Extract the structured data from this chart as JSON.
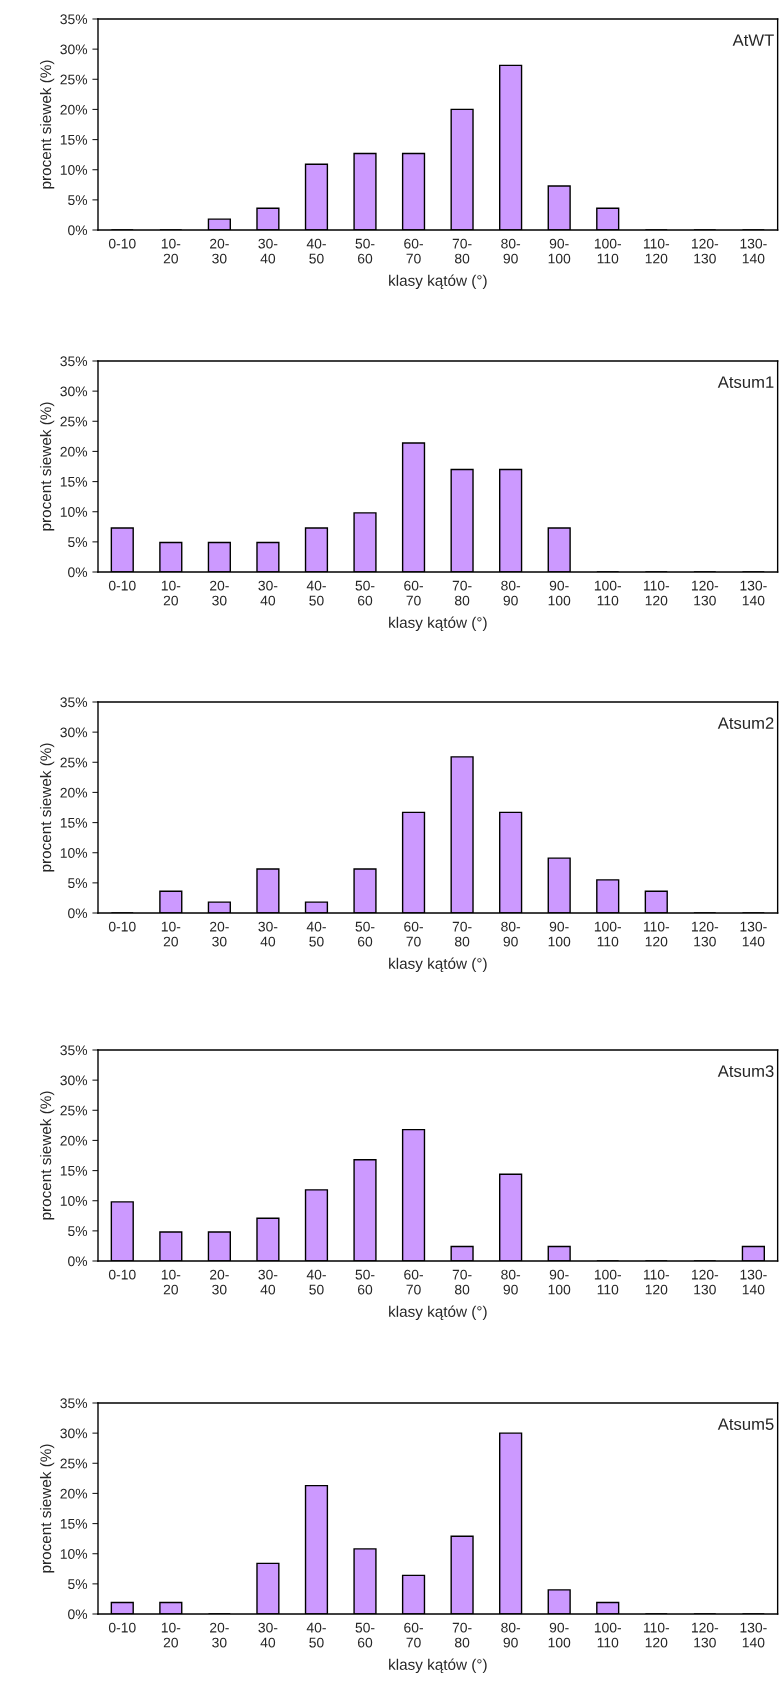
{
  "chart_data": [
    {
      "type": "bar",
      "title": "AtWT",
      "xlabel": "klasy kątów (°)",
      "ylabel": "procent siewek (%)",
      "categories": [
        "0-10",
        "10-\n20",
        "20-\n30",
        "30-\n40",
        "40-\n50",
        "50-\n60",
        "60-\n70",
        "70-\n80",
        "80-\n90",
        "90-\n100",
        "100-\n110",
        "110-\n120",
        "120-\n130",
        "130-\n140"
      ],
      "color": "#cc99ff",
      "values": [
        0,
        0,
        1.8,
        3.6,
        10.9,
        12.7,
        12.7,
        20,
        27.3,
        7.3,
        3.6,
        0,
        0,
        0
      ],
      "ylim": [
        0,
        35
      ],
      "yticks": [
        {
          "value": 0,
          "label": "0%"
        },
        {
          "value": 5,
          "label": "5%"
        },
        {
          "value": 10,
          "label": "10%"
        },
        {
          "value": 15,
          "label": "15%"
        },
        {
          "value": 20,
          "label": "20%"
        },
        {
          "value": 25,
          "label": "25%"
        },
        {
          "value": 30,
          "label": "30%"
        },
        {
          "value": 35,
          "label": "35%"
        }
      ],
      "grid": false,
      "legend": false
    },
    {
      "type": "bar",
      "title": "Atsum1",
      "xlabel": "klasy kątów (°)",
      "ylabel": "procent siewek (%)",
      "categories": [
        "0-10",
        "10-\n20",
        "20-\n30",
        "30-\n40",
        "40-\n50",
        "50-\n60",
        "60-\n70",
        "70-\n80",
        "80-\n90",
        "90-\n100",
        "100-\n110",
        "110-\n120",
        "120-\n130",
        "130-\n140"
      ],
      "color": "#cc99ff",
      "values": [
        7.3,
        4.9,
        4.9,
        4.9,
        7.3,
        9.8,
        21.4,
        17,
        17,
        7.3,
        0,
        0,
        0,
        0
      ],
      "ylim": [
        0,
        35
      ],
      "yticks": [
        {
          "value": 0,
          "label": "0%"
        },
        {
          "value": 5,
          "label": "5%"
        },
        {
          "value": 10,
          "label": "10%"
        },
        {
          "value": 15,
          "label": "15%"
        },
        {
          "value": 20,
          "label": "20%"
        },
        {
          "value": 25,
          "label": "25%"
        },
        {
          "value": 30,
          "label": "30%"
        },
        {
          "value": 35,
          "label": "35%"
        }
      ],
      "grid": false,
      "legend": false
    },
    {
      "type": "bar",
      "title": "Atsum2",
      "xlabel": "klasy kątów (°)",
      "ylabel": "procent siewek (%)",
      "categories": [
        "0-10",
        "10-\n20",
        "20-\n30",
        "30-\n40",
        "40-\n50",
        "50-\n60",
        "60-\n70",
        "70-\n80",
        "80-\n90",
        "90-\n100",
        "100-\n110",
        "110-\n120",
        "120-\n130",
        "130-\n140"
      ],
      "color": "#cc99ff",
      "values": [
        0,
        3.6,
        1.8,
        7.3,
        1.8,
        7.3,
        16.7,
        25.9,
        16.7,
        9.1,
        5.5,
        3.6,
        0,
        0
      ],
      "ylim": [
        0,
        35
      ],
      "yticks": [
        {
          "value": 0,
          "label": "0%"
        },
        {
          "value": 5,
          "label": "5%"
        },
        {
          "value": 10,
          "label": "10%"
        },
        {
          "value": 15,
          "label": "15%"
        },
        {
          "value": 20,
          "label": "20%"
        },
        {
          "value": 25,
          "label": "25%"
        },
        {
          "value": 30,
          "label": "30%"
        },
        {
          "value": 35,
          "label": "35%"
        }
      ],
      "grid": false,
      "legend": false
    },
    {
      "type": "bar",
      "title": "Atsum3",
      "xlabel": "klasy kątów (°)",
      "ylabel": "procent siewek (%)",
      "categories": [
        "0-10",
        "10-\n20",
        "20-\n30",
        "30-\n40",
        "40-\n50",
        "50-\n60",
        "60-\n70",
        "70-\n80",
        "80-\n90",
        "90-\n100",
        "100-\n110",
        "110-\n120",
        "120-\n130",
        "130-\n140"
      ],
      "color": "#cc99ff",
      "values": [
        9.8,
        4.8,
        4.8,
        7.1,
        11.8,
        16.8,
        21.8,
        2.4,
        14.4,
        2.4,
        0,
        0,
        0,
        2.4
      ],
      "ylim": [
        0,
        35
      ],
      "yticks": [
        {
          "value": 0,
          "label": "0%"
        },
        {
          "value": 5,
          "label": "5%"
        },
        {
          "value": 10,
          "label": "10%"
        },
        {
          "value": 15,
          "label": "15%"
        },
        {
          "value": 20,
          "label": "20%"
        },
        {
          "value": 25,
          "label": "25%"
        },
        {
          "value": 30,
          "label": "30%"
        },
        {
          "value": 35,
          "label": "35%"
        }
      ],
      "grid": false,
      "legend": false
    },
    {
      "type": "bar",
      "title": "Atsum5",
      "xlabel": "klasy kątów (°)",
      "ylabel": "procent siewek (%)",
      "categories": [
        "0-10",
        "10-\n20",
        "20-\n30",
        "30-\n40",
        "40-\n50",
        "50-\n60",
        "60-\n70",
        "70-\n80",
        "80-\n90",
        "90-\n100",
        "100-\n110",
        "110-\n120",
        "120-\n130",
        "130-\n140"
      ],
      "color": "#cc99ff",
      "values": [
        1.9,
        1.9,
        0,
        8.4,
        21.3,
        10.8,
        6.4,
        12.9,
        30,
        4,
        1.9,
        0,
        0,
        0
      ],
      "ylim": [
        0,
        35
      ],
      "yticks": [
        {
          "value": 0,
          "label": "0%"
        },
        {
          "value": 5,
          "label": "5%"
        },
        {
          "value": 10,
          "label": "10%"
        },
        {
          "value": 15,
          "label": "15%"
        },
        {
          "value": 20,
          "label": "20%"
        },
        {
          "value": 25,
          "label": "25%"
        },
        {
          "value": 30,
          "label": "30%"
        },
        {
          "value": 35,
          "label": "35%"
        }
      ],
      "grid": false,
      "legend": false
    }
  ]
}
